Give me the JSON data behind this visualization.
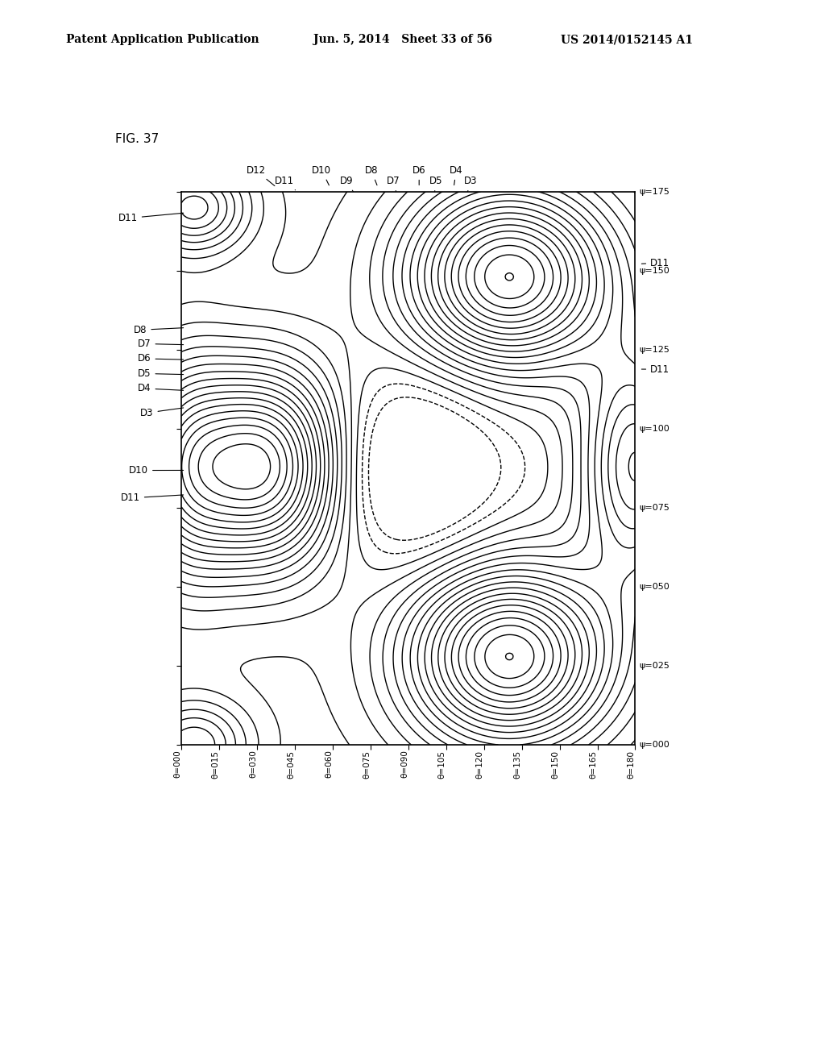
{
  "fig_label": "FIG. 37",
  "header_left": "Patent Application Publication",
  "header_mid": "Jun. 5, 2014   Sheet 33 of 56",
  "header_right": "US 2014/0152145 A1",
  "x_label": "θ",
  "y_label": "ψ",
  "x_ticks": [
    0,
    15,
    30,
    45,
    60,
    75,
    90,
    105,
    120,
    135,
    150,
    165,
    180
  ],
  "x_tick_labels": [
    "θ=000",
    "θ=015",
    "θ=030",
    "θ=045",
    "θ=060",
    "θ=075",
    "θ=090",
    "θ=105",
    "θ=120",
    "θ=135",
    "θ=150",
    "θ=165",
    "θ=180"
  ],
  "y_ticks": [
    0,
    25,
    50,
    75,
    100,
    125,
    150,
    175
  ],
  "y_tick_labels": [
    "ψ=000",
    "ψ=025",
    "ψ=050",
    "ψ=075",
    "ψ=100",
    "ψ=125",
    "ψ=150",
    "ψ=175"
  ],
  "background_color": "#ffffff",
  "contour_color": "#000000",
  "line_width": 1.0
}
